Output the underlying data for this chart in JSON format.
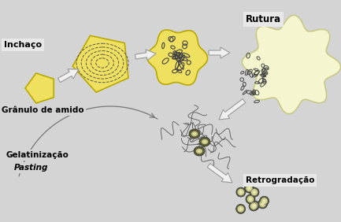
{
  "bg_color": "#d4d4d4",
  "yellow_fill": "#f0e060",
  "yellow_light": "#f5f5d0",
  "yellow_border": "#b8a800",
  "dark_color": "#333333",
  "arrow_fill": "#f0f0f0",
  "arrow_edge": "#999999",
  "chain_color": "#444444",
  "labels": {
    "inchaco": "Inchaço",
    "granulo": "Grânulo de amido",
    "rutura": "Rutura",
    "gelatinizacao": "Gelatinização",
    "pasting": "Pasting",
    "retrogradacao": "Retrogradação"
  },
  "figsize": [
    4.33,
    2.82
  ],
  "dpi": 100
}
